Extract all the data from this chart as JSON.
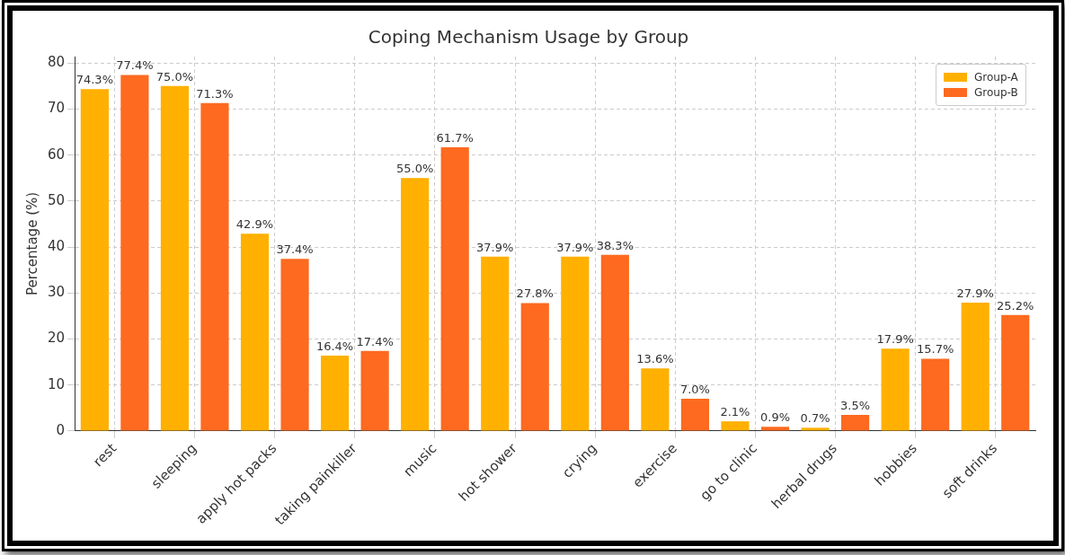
{
  "chart_data": {
    "type": "bar",
    "title": "Coping Mechanism Usage by Group",
    "ylabel": "Percentage (%)",
    "categories": [
      "rest",
      "sleeping",
      "apply hot packs",
      "taking painkiller",
      "music",
      "hot shower",
      "crying",
      "exercise",
      "go to clinic",
      "herbal drugs",
      "hobbies",
      "soft drinks"
    ],
    "series": [
      {
        "name": "Group-A",
        "color": "#ffb000",
        "values": [
          74.3,
          75.0,
          42.9,
          16.4,
          55.0,
          37.9,
          37.9,
          13.6,
          2.1,
          0.7,
          17.9,
          27.9
        ],
        "value_labels": [
          "74.3%",
          "75.0%",
          "42.9%",
          "16.4%",
          "55.0%",
          "37.9%",
          "37.9%",
          "13.6%",
          "2.1%",
          "0.7%",
          "17.9%",
          "27.9%"
        ]
      },
      {
        "name": "Group-B",
        "color": "#fd6a20",
        "values": [
          77.4,
          71.3,
          37.4,
          17.4,
          61.7,
          27.8,
          38.3,
          7.0,
          0.9,
          3.5,
          15.7,
          25.2
        ],
        "value_labels": [
          "77.4%",
          "71.3%",
          "37.4%",
          "17.4%",
          "61.7%",
          "27.8%",
          "38.3%",
          "7.0%",
          "0.9%",
          "3.5%",
          "15.7%",
          "25.2%"
        ]
      }
    ],
    "ylim": [
      0,
      81.4
    ],
    "yticks": [
      0,
      10,
      20,
      30,
      40,
      50,
      60,
      70,
      80
    ],
    "grid": true,
    "legend": "top right"
  }
}
